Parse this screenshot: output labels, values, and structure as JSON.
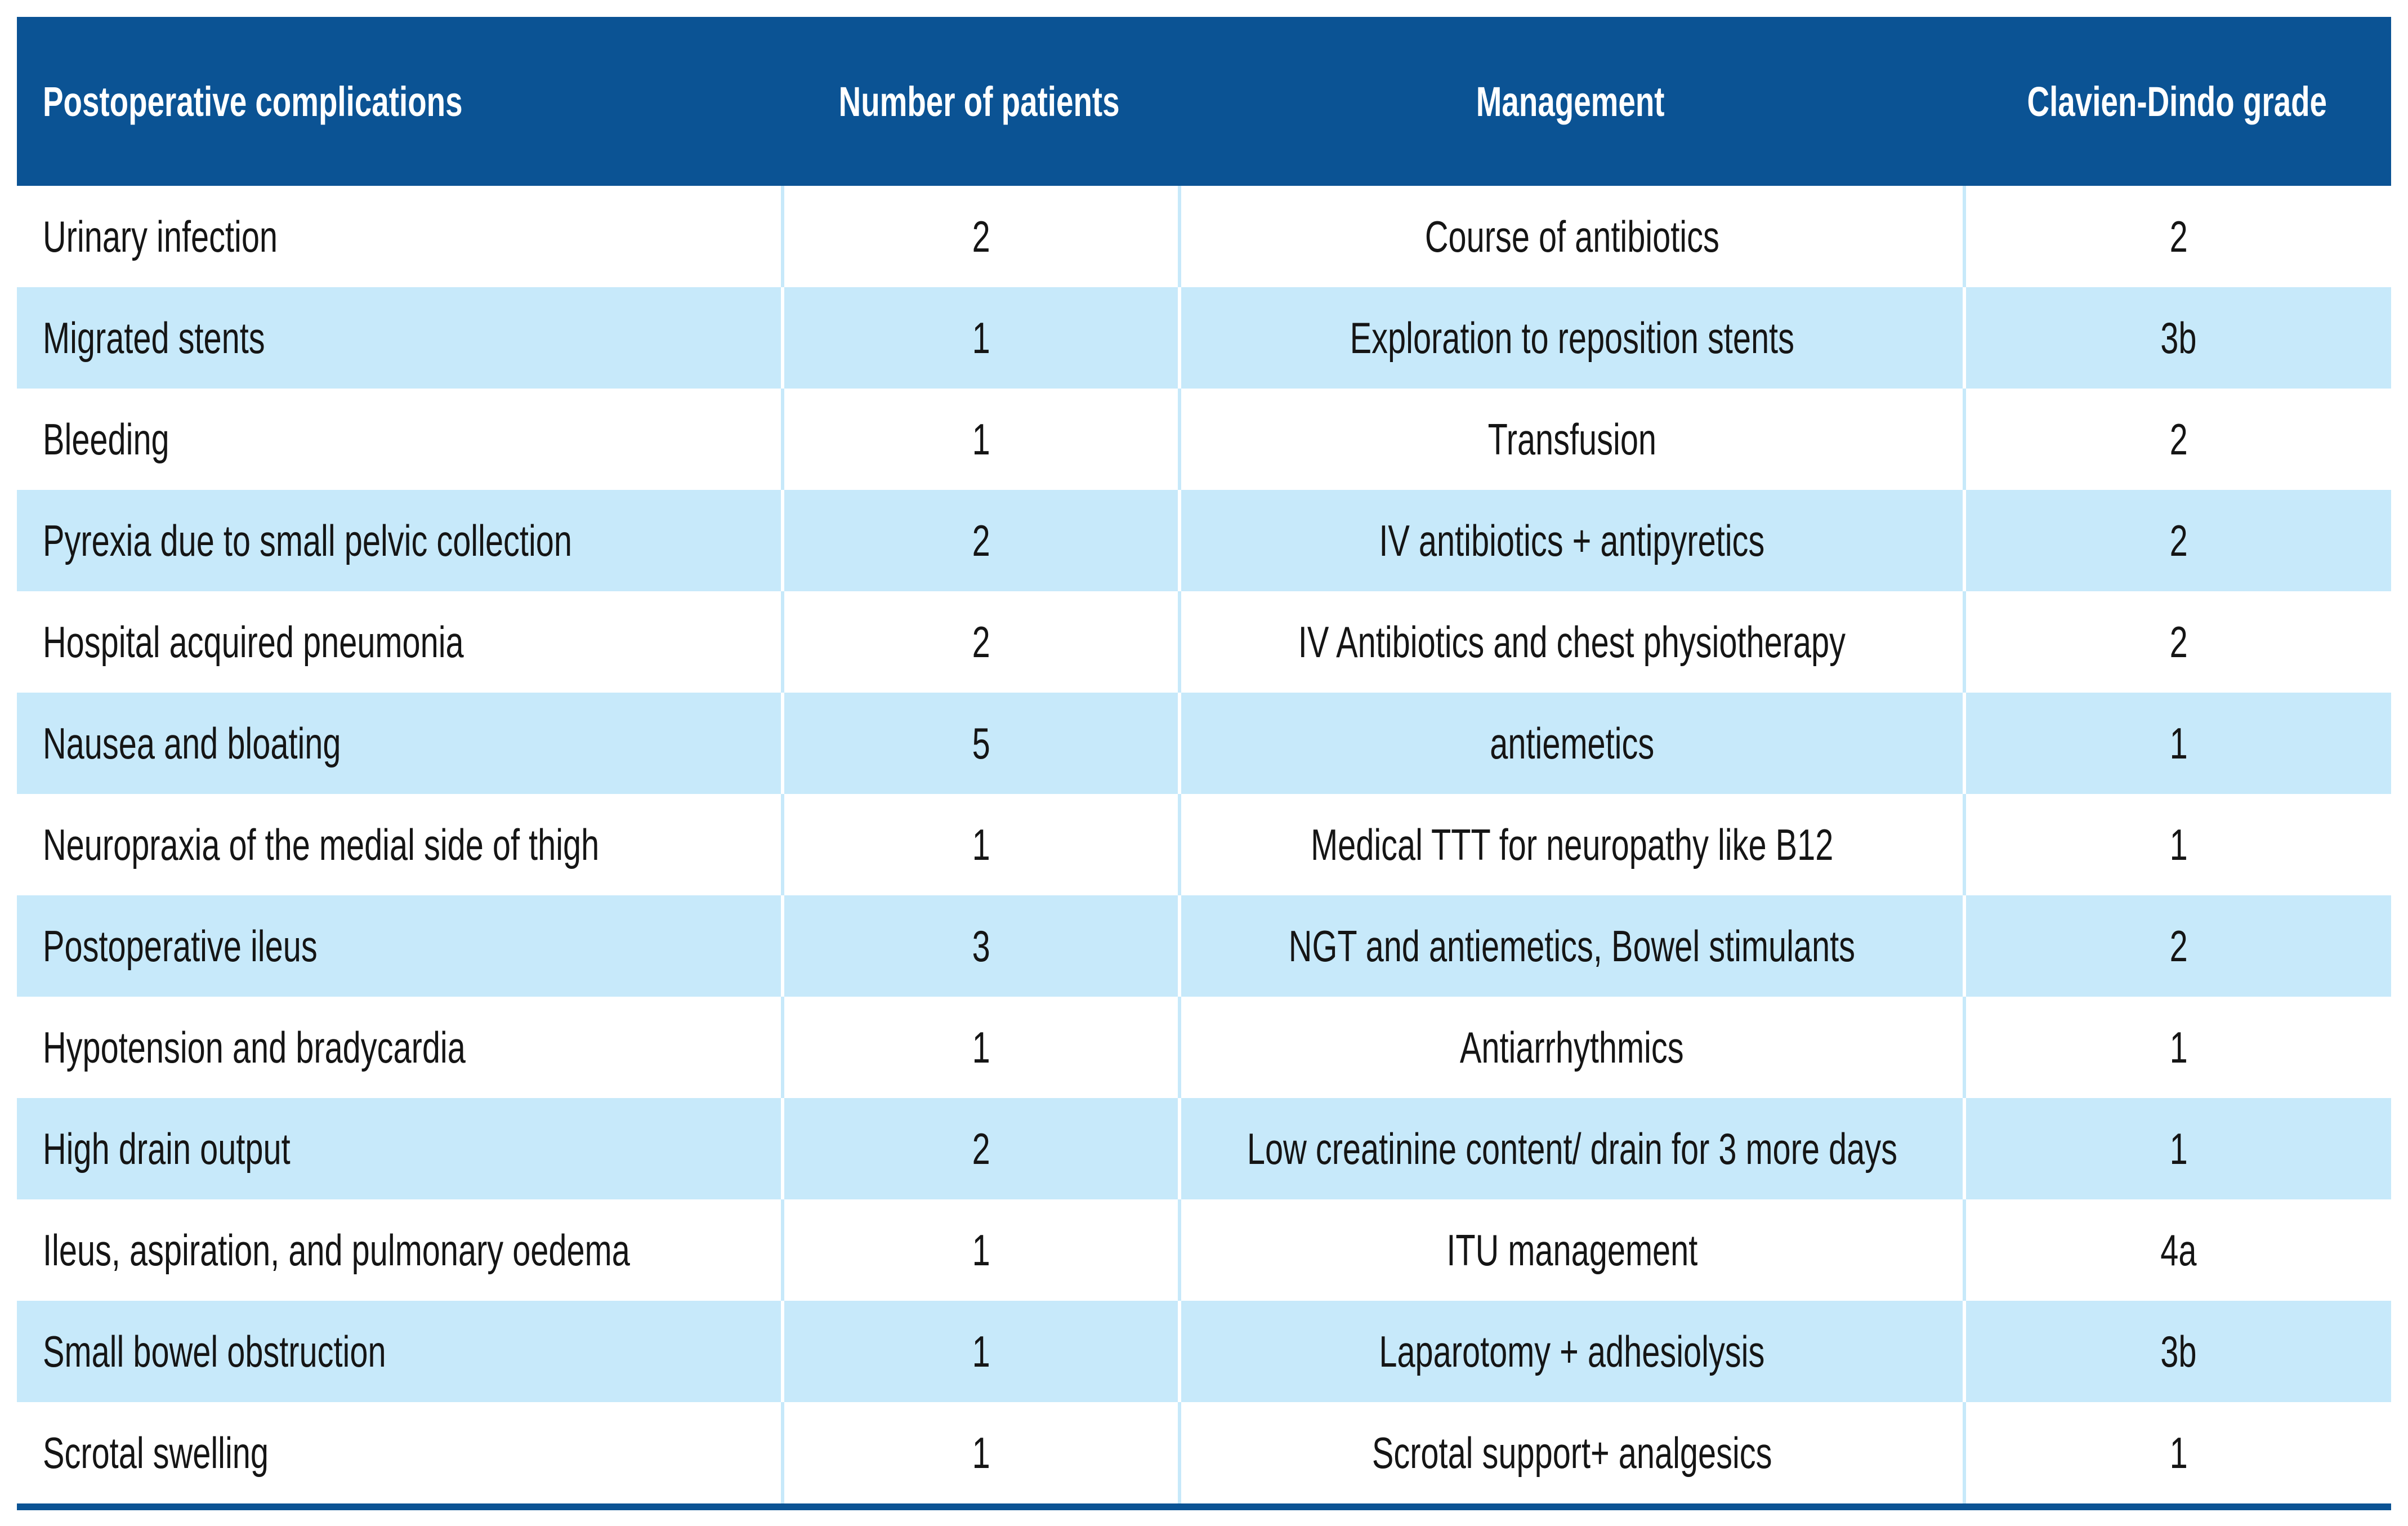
{
  "table": {
    "columns": [
      {
        "label": "Postoperative complications",
        "align": "left"
      },
      {
        "label": "Number of patients",
        "align": "center"
      },
      {
        "label": "Management",
        "align": "center"
      },
      {
        "label": "Clavien-Dindo grade",
        "align": "center"
      }
    ],
    "rows": [
      {
        "complication": "Urinary infection",
        "patients": "2",
        "management": "Course of antibiotics",
        "grade": "2"
      },
      {
        "complication": "Migrated stents",
        "patients": "1",
        "management": "Exploration to reposition stents",
        "grade": "3b"
      },
      {
        "complication": "Bleeding",
        "patients": "1",
        "management": "Transfusion",
        "grade": "2"
      },
      {
        "complication": "Pyrexia due to small pelvic collection",
        "patients": "2",
        "management": "IV antibiotics + antipyretics",
        "grade": "2"
      },
      {
        "complication": "Hospital acquired pneumonia",
        "patients": "2",
        "management": "IV Antibiotics and chest physiotherapy",
        "grade": "2"
      },
      {
        "complication": "Nausea and bloating",
        "patients": "5",
        "management": "antiemetics",
        "grade": "1"
      },
      {
        "complication": "Neuropraxia of the medial side of thigh",
        "patients": "1",
        "management": "Medical TTT for neuropathy like B12",
        "grade": "1"
      },
      {
        "complication": "Postoperative ileus",
        "patients": "3",
        "management": "NGT and antiemetics, Bowel stimulants",
        "grade": "2"
      },
      {
        "complication": "Hypotension and bradycardia",
        "patients": "1",
        "management": "Antiarrhythmics",
        "grade": "1"
      },
      {
        "complication": "High drain output",
        "patients": "2",
        "management": "Low creatinine content/ drain for 3 more days",
        "grade": "1"
      },
      {
        "complication": "Ileus, aspiration, and pulmonary oedema",
        "patients": "1",
        "management": "ITU management",
        "grade": "4a"
      },
      {
        "complication": "Small bowel obstruction",
        "patients": "1",
        "management": "Laparotomy + adhesiolysis",
        "grade": "3b"
      },
      {
        "complication": "Scrotal swelling",
        "patients": "1",
        "management": "Scrotal support+ analgesics",
        "grade": "1"
      }
    ]
  },
  "colors": {
    "header_bg": "#0B5394",
    "header_text": "#FFFFFF",
    "row_bg": "#FFFFFF",
    "row_alt_bg": "#C7E9FA",
    "body_text": "#151515",
    "bottom_rule": "#0B5394"
  }
}
